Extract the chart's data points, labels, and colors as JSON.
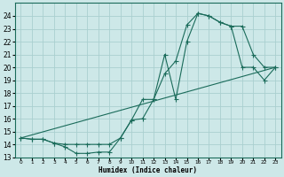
{
  "xlabel": "Humidex (Indice chaleur)",
  "background_color": "#cde8e8",
  "grid_color": "#aacfcf",
  "line_color": "#1a6b5a",
  "xlim": [
    -0.5,
    23.5
  ],
  "ylim": [
    13,
    25
  ],
  "yticks": [
    13,
    14,
    15,
    16,
    17,
    18,
    19,
    20,
    21,
    22,
    23,
    24
  ],
  "xticks": [
    0,
    1,
    2,
    3,
    4,
    5,
    6,
    7,
    8,
    9,
    10,
    11,
    12,
    13,
    14,
    15,
    16,
    17,
    18,
    19,
    20,
    21,
    22,
    23
  ],
  "line1_x": [
    0,
    1,
    2,
    3,
    4,
    5,
    6,
    7,
    8,
    9,
    10,
    11,
    12,
    13,
    14,
    15,
    16,
    17,
    18,
    19,
    20,
    21,
    22,
    23
  ],
  "line1_y": [
    14.5,
    14.4,
    14.4,
    14.1,
    13.8,
    13.3,
    13.3,
    13.4,
    13.4,
    14.5,
    15.9,
    17.5,
    17.5,
    19.5,
    20.5,
    23.3,
    24.2,
    24.0,
    23.5,
    23.2,
    20.0,
    20.0,
    19.0,
    20.0
  ],
  "line2_x": [
    0,
    1,
    2,
    3,
    4,
    5,
    6,
    7,
    8,
    9,
    10,
    11,
    12,
    13,
    14,
    15,
    16,
    17,
    18,
    19,
    20,
    21,
    22,
    23
  ],
  "line2_y": [
    14.5,
    14.4,
    14.4,
    14.1,
    14.0,
    14.0,
    14.0,
    14.0,
    14.0,
    14.5,
    15.9,
    16.0,
    17.5,
    21.0,
    17.5,
    22.0,
    24.2,
    24.0,
    23.5,
    23.2,
    23.2,
    21.0,
    20.0,
    20.0
  ],
  "line3_x": [
    0,
    23
  ],
  "line3_y": [
    14.5,
    20.0
  ]
}
